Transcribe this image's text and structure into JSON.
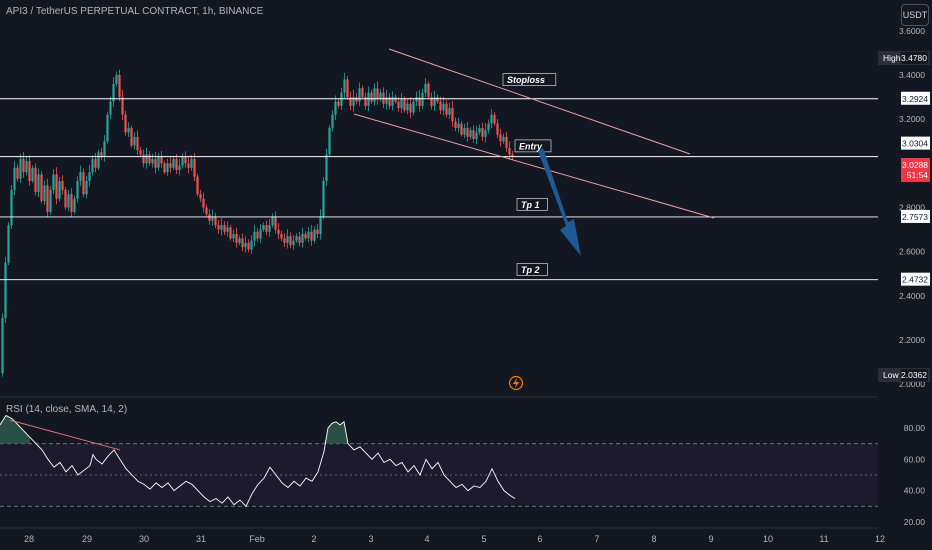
{
  "header": {
    "title": "API3 / TetherUS PERPETUAL CONTRACT, 1h, BINANCE",
    "currency_button": "USDT"
  },
  "rsi_panel": {
    "title": "RSI (14, close, SMA, 14, 2)"
  },
  "chart_data": [
    {
      "type": "candlestick",
      "symbol": "API3 / TetherUS PERPETUAL CONTRACT",
      "timeframe": "1h",
      "exchange": "BINANCE",
      "ylim": [
        2.0,
        3.6
      ],
      "y_ticks": [
        "3.6000",
        "3.4000",
        "3.2000",
        "2.8000",
        "2.6000",
        "2.4000",
        "2.2000",
        "2.0000"
      ],
      "x_ticks": [
        "28",
        "29",
        "30",
        "31",
        "Feb",
        "2",
        "3",
        "4",
        "5",
        "6",
        "7",
        "8",
        "9",
        "10",
        "11",
        "12"
      ],
      "price_labels": [
        {
          "label": "High",
          "value": "3.4780"
        },
        {
          "label": "",
          "value": "3.2924"
        },
        {
          "label": "",
          "value": "3.0304"
        },
        {
          "label": "",
          "value": "3.0288",
          "sub": "51:54",
          "kind": "current"
        },
        {
          "label": "",
          "value": "2.7573"
        },
        {
          "label": "",
          "value": "2.4732"
        },
        {
          "label": "Low",
          "value": "2.0362"
        }
      ],
      "levels": [
        {
          "name": "Stoploss",
          "value": 3.2924
        },
        {
          "name": "Entry",
          "value": 3.0304
        },
        {
          "name": "Tp 1",
          "value": 2.7573
        },
        {
          "name": "Tp 2",
          "value": 2.4732
        }
      ],
      "path_points": [
        [
          0,
          2.05
        ],
        [
          3,
          2.3
        ],
        [
          6,
          2.55
        ],
        [
          9,
          2.72
        ],
        [
          12,
          2.88
        ],
        [
          15,
          2.98
        ],
        [
          18,
          2.93
        ],
        [
          21,
          3.02
        ],
        [
          24,
          2.96
        ],
        [
          27,
          3.01
        ],
        [
          30,
          2.92
        ],
        [
          33,
          2.98
        ],
        [
          36,
          2.87
        ],
        [
          39,
          2.95
        ],
        [
          42,
          2.83
        ],
        [
          45,
          2.9
        ],
        [
          48,
          2.78
        ],
        [
          51,
          2.88
        ],
        [
          54,
          2.95
        ],
        [
          57,
          2.84
        ],
        [
          60,
          2.92
        ],
        [
          63,
          2.88
        ],
        [
          66,
          2.8
        ],
        [
          69,
          2.86
        ],
        [
          72,
          2.78
        ],
        [
          75,
          2.84
        ],
        [
          78,
          2.92
        ],
        [
          81,
          2.96
        ],
        [
          84,
          2.86
        ],
        [
          87,
          2.92
        ],
        [
          90,
          2.96
        ],
        [
          93,
          3.02
        ],
        [
          96,
          2.98
        ],
        [
          99,
          3.05
        ],
        [
          102,
          3.03
        ],
        [
          105,
          3.1
        ],
        [
          108,
          3.22
        ],
        [
          111,
          3.28
        ],
        [
          114,
          3.36
        ],
        [
          117,
          3.4
        ],
        [
          120,
          3.3
        ],
        [
          123,
          3.22
        ],
        [
          126,
          3.14
        ],
        [
          129,
          3.16
        ],
        [
          132,
          3.08
        ],
        [
          135,
          3.12
        ],
        [
          138,
          3.06
        ],
        [
          141,
          3.04
        ],
        [
          144,
          3.0
        ],
        [
          147,
          3.04
        ],
        [
          150,
          3.0
        ],
        [
          153,
          3.02
        ],
        [
          156,
          2.98
        ],
        [
          159,
          3.03
        ],
        [
          162,
          3.0
        ],
        [
          165,
          2.96
        ],
        [
          168,
          3.0
        ],
        [
          171,
          2.98
        ],
        [
          174,
          3.02
        ],
        [
          177,
          2.97
        ],
        [
          180,
          2.99
        ],
        [
          183,
          3.03
        ],
        [
          186,
          3.0
        ],
        [
          189,
          2.98
        ],
        [
          192,
          3.02
        ],
        [
          195,
          2.94
        ],
        [
          198,
          2.86
        ],
        [
          201,
          2.84
        ],
        [
          204,
          2.8
        ],
        [
          207,
          2.77
        ],
        [
          210,
          2.74
        ],
        [
          213,
          2.76
        ],
        [
          216,
          2.72
        ],
        [
          219,
          2.7
        ],
        [
          222,
          2.72
        ],
        [
          225,
          2.69
        ],
        [
          228,
          2.71
        ],
        [
          231,
          2.66
        ],
        [
          234,
          2.68
        ],
        [
          237,
          2.64
        ],
        [
          240,
          2.66
        ],
        [
          243,
          2.62
        ],
        [
          246,
          2.64
        ],
        [
          249,
          2.61
        ],
        [
          252,
          2.65
        ],
        [
          255,
          2.69
        ],
        [
          258,
          2.66
        ],
        [
          261,
          2.7
        ],
        [
          264,
          2.72
        ],
        [
          267,
          2.69
        ],
        [
          270,
          2.72
        ],
        [
          273,
          2.76
        ],
        [
          276,
          2.7
        ],
        [
          279,
          2.68
        ],
        [
          282,
          2.66
        ],
        [
          285,
          2.64
        ],
        [
          288,
          2.67
        ],
        [
          291,
          2.63
        ],
        [
          294,
          2.65
        ],
        [
          297,
          2.67
        ],
        [
          300,
          2.64
        ],
        [
          303,
          2.68
        ],
        [
          306,
          2.66
        ],
        [
          309,
          2.69
        ],
        [
          312,
          2.65
        ],
        [
          315,
          2.7
        ],
        [
          318,
          2.68
        ],
        [
          321,
          2.76
        ],
        [
          324,
          2.92
        ],
        [
          327,
          3.04
        ],
        [
          330,
          3.16
        ],
        [
          333,
          3.22
        ],
        [
          336,
          3.28
        ],
        [
          339,
          3.26
        ],
        [
          342,
          3.32
        ],
        [
          345,
          3.38
        ],
        [
          348,
          3.3
        ],
        [
          351,
          3.26
        ],
        [
          354,
          3.3
        ],
        [
          357,
          3.28
        ],
        [
          360,
          3.34
        ],
        [
          363,
          3.3
        ],
        [
          366,
          3.26
        ],
        [
          369,
          3.32
        ],
        [
          372,
          3.28
        ],
        [
          375,
          3.34
        ],
        [
          378,
          3.29
        ],
        [
          381,
          3.32
        ],
        [
          384,
          3.27
        ],
        [
          387,
          3.3
        ],
        [
          390,
          3.26
        ],
        [
          393,
          3.3
        ],
        [
          396,
          3.28
        ],
        [
          399,
          3.25
        ],
        [
          402,
          3.29
        ],
        [
          405,
          3.24
        ],
        [
          408,
          3.27
        ],
        [
          411,
          3.23
        ],
        [
          414,
          3.28
        ],
        [
          417,
          3.3
        ],
        [
          420,
          3.26
        ],
        [
          423,
          3.32
        ],
        [
          426,
          3.36
        ],
        [
          429,
          3.3
        ],
        [
          432,
          3.26
        ],
        [
          435,
          3.3
        ],
        [
          438,
          3.28
        ],
        [
          441,
          3.24
        ],
        [
          444,
          3.27
        ],
        [
          447,
          3.22
        ],
        [
          450,
          3.25
        ],
        [
          453,
          3.19
        ],
        [
          456,
          3.16
        ],
        [
          459,
          3.18
        ],
        [
          462,
          3.13
        ],
        [
          465,
          3.16
        ],
        [
          468,
          3.12
        ],
        [
          471,
          3.15
        ],
        [
          474,
          3.11
        ],
        [
          477,
          3.14
        ],
        [
          480,
          3.16
        ],
        [
          483,
          3.12
        ],
        [
          486,
          3.15
        ],
        [
          489,
          3.18
        ],
        [
          492,
          3.22
        ],
        [
          495,
          3.18
        ],
        [
          498,
          3.13
        ],
        [
          501,
          3.1
        ],
        [
          504,
          3.12
        ],
        [
          507,
          3.07
        ],
        [
          510,
          3.04
        ],
        [
          513,
          3.03
        ]
      ]
    },
    {
      "type": "line",
      "name": "RSI",
      "ylim": [
        20,
        90
      ],
      "y_ticks": [
        "80.00",
        "60.00",
        "40.00",
        "20.00"
      ],
      "bands": [
        70,
        50,
        30
      ],
      "path_points": [
        [
          0,
          82
        ],
        [
          6,
          88
        ],
        [
          12,
          86
        ],
        [
          18,
          82
        ],
        [
          24,
          78
        ],
        [
          30,
          74
        ],
        [
          36,
          70
        ],
        [
          42,
          66
        ],
        [
          48,
          60
        ],
        [
          54,
          55
        ],
        [
          60,
          58
        ],
        [
          66,
          52
        ],
        [
          72,
          56
        ],
        [
          78,
          50
        ],
        [
          84,
          53
        ],
        [
          90,
          56
        ],
        [
          93,
          63
        ],
        [
          96,
          60
        ],
        [
          102,
          57
        ],
        [
          108,
          62
        ],
        [
          114,
          66
        ],
        [
          120,
          60
        ],
        [
          126,
          54
        ],
        [
          132,
          50
        ],
        [
          138,
          46
        ],
        [
          144,
          44
        ],
        [
          150,
          41
        ],
        [
          156,
          45
        ],
        [
          162,
          42
        ],
        [
          168,
          45
        ],
        [
          174,
          40
        ],
        [
          180,
          43
        ],
        [
          186,
          46
        ],
        [
          192,
          44
        ],
        [
          198,
          40
        ],
        [
          204,
          36
        ],
        [
          210,
          33
        ],
        [
          216,
          35
        ],
        [
          222,
          32
        ],
        [
          228,
          36
        ],
        [
          234,
          31
        ],
        [
          240,
          34
        ],
        [
          246,
          30
        ],
        [
          252,
          38
        ],
        [
          258,
          44
        ],
        [
          264,
          48
        ],
        [
          270,
          55
        ],
        [
          276,
          50
        ],
        [
          282,
          45
        ],
        [
          288,
          42
        ],
        [
          294,
          46
        ],
        [
          300,
          43
        ],
        [
          306,
          48
        ],
        [
          312,
          46
        ],
        [
          318,
          52
        ],
        [
          324,
          65
        ],
        [
          328,
          80
        ],
        [
          332,
          83
        ],
        [
          336,
          84
        ],
        [
          340,
          82
        ],
        [
          344,
          84
        ],
        [
          348,
          70
        ],
        [
          354,
          66
        ],
        [
          360,
          68
        ],
        [
          366,
          64
        ],
        [
          372,
          60
        ],
        [
          378,
          64
        ],
        [
          384,
          58
        ],
        [
          390,
          60
        ],
        [
          396,
          56
        ],
        [
          402,
          58
        ],
        [
          408,
          52
        ],
        [
          414,
          56
        ],
        [
          420,
          50
        ],
        [
          426,
          60
        ],
        [
          432,
          54
        ],
        [
          438,
          58
        ],
        [
          444,
          50
        ],
        [
          450,
          46
        ],
        [
          456,
          42
        ],
        [
          462,
          44
        ],
        [
          468,
          40
        ],
        [
          474,
          43
        ],
        [
          480,
          42
        ],
        [
          486,
          46
        ],
        [
          492,
          54
        ],
        [
          498,
          46
        ],
        [
          504,
          40
        ],
        [
          510,
          37
        ],
        [
          515,
          35
        ]
      ]
    }
  ],
  "colors": {
    "background": "#131722",
    "bull": "#26a69a",
    "bear": "#ef5350",
    "level_line": "#ffffff",
    "channel": "#f0a0a0",
    "arrow": "#1e5a96",
    "rsi_line": "#ffffff",
    "rsi_band_fill": "#1d1a2e",
    "overbought_fill": "#2e5a4a",
    "rsi_trendline": "#e57373",
    "current_price_tag": "#f23645",
    "axis_text": "#b2b5be"
  },
  "icons": {
    "flash_icon": "lightning-circle"
  }
}
